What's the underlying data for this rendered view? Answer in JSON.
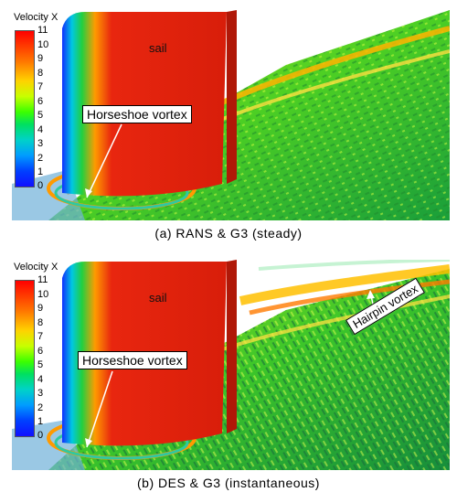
{
  "panels": [
    {
      "legend_title": "Velocity X",
      "legend_ticks": [
        "11",
        "10",
        "9",
        "8",
        "7",
        "6",
        "5",
        "4",
        "3",
        "2",
        "1",
        "0"
      ],
      "sail_label": "sail",
      "callouts": [
        "Horseshoe vortex"
      ],
      "caption": "(a) RANS & G3 (steady)"
    },
    {
      "legend_title": "Velocity X",
      "legend_ticks": [
        "11",
        "10",
        "9",
        "8",
        "7",
        "6",
        "5",
        "4",
        "3",
        "2",
        "1",
        "0"
      ],
      "sail_label": "sail",
      "callouts": [
        "Horseshoe vortex",
        "Hairpin vortex"
      ],
      "caption": "(b) DES & G3 (instantaneous)"
    }
  ],
  "colors": {
    "sail": "#e8260f",
    "hull": "#3fcf2a",
    "legend_top": "#ff0000",
    "legend_bottom": "#1010ff"
  }
}
